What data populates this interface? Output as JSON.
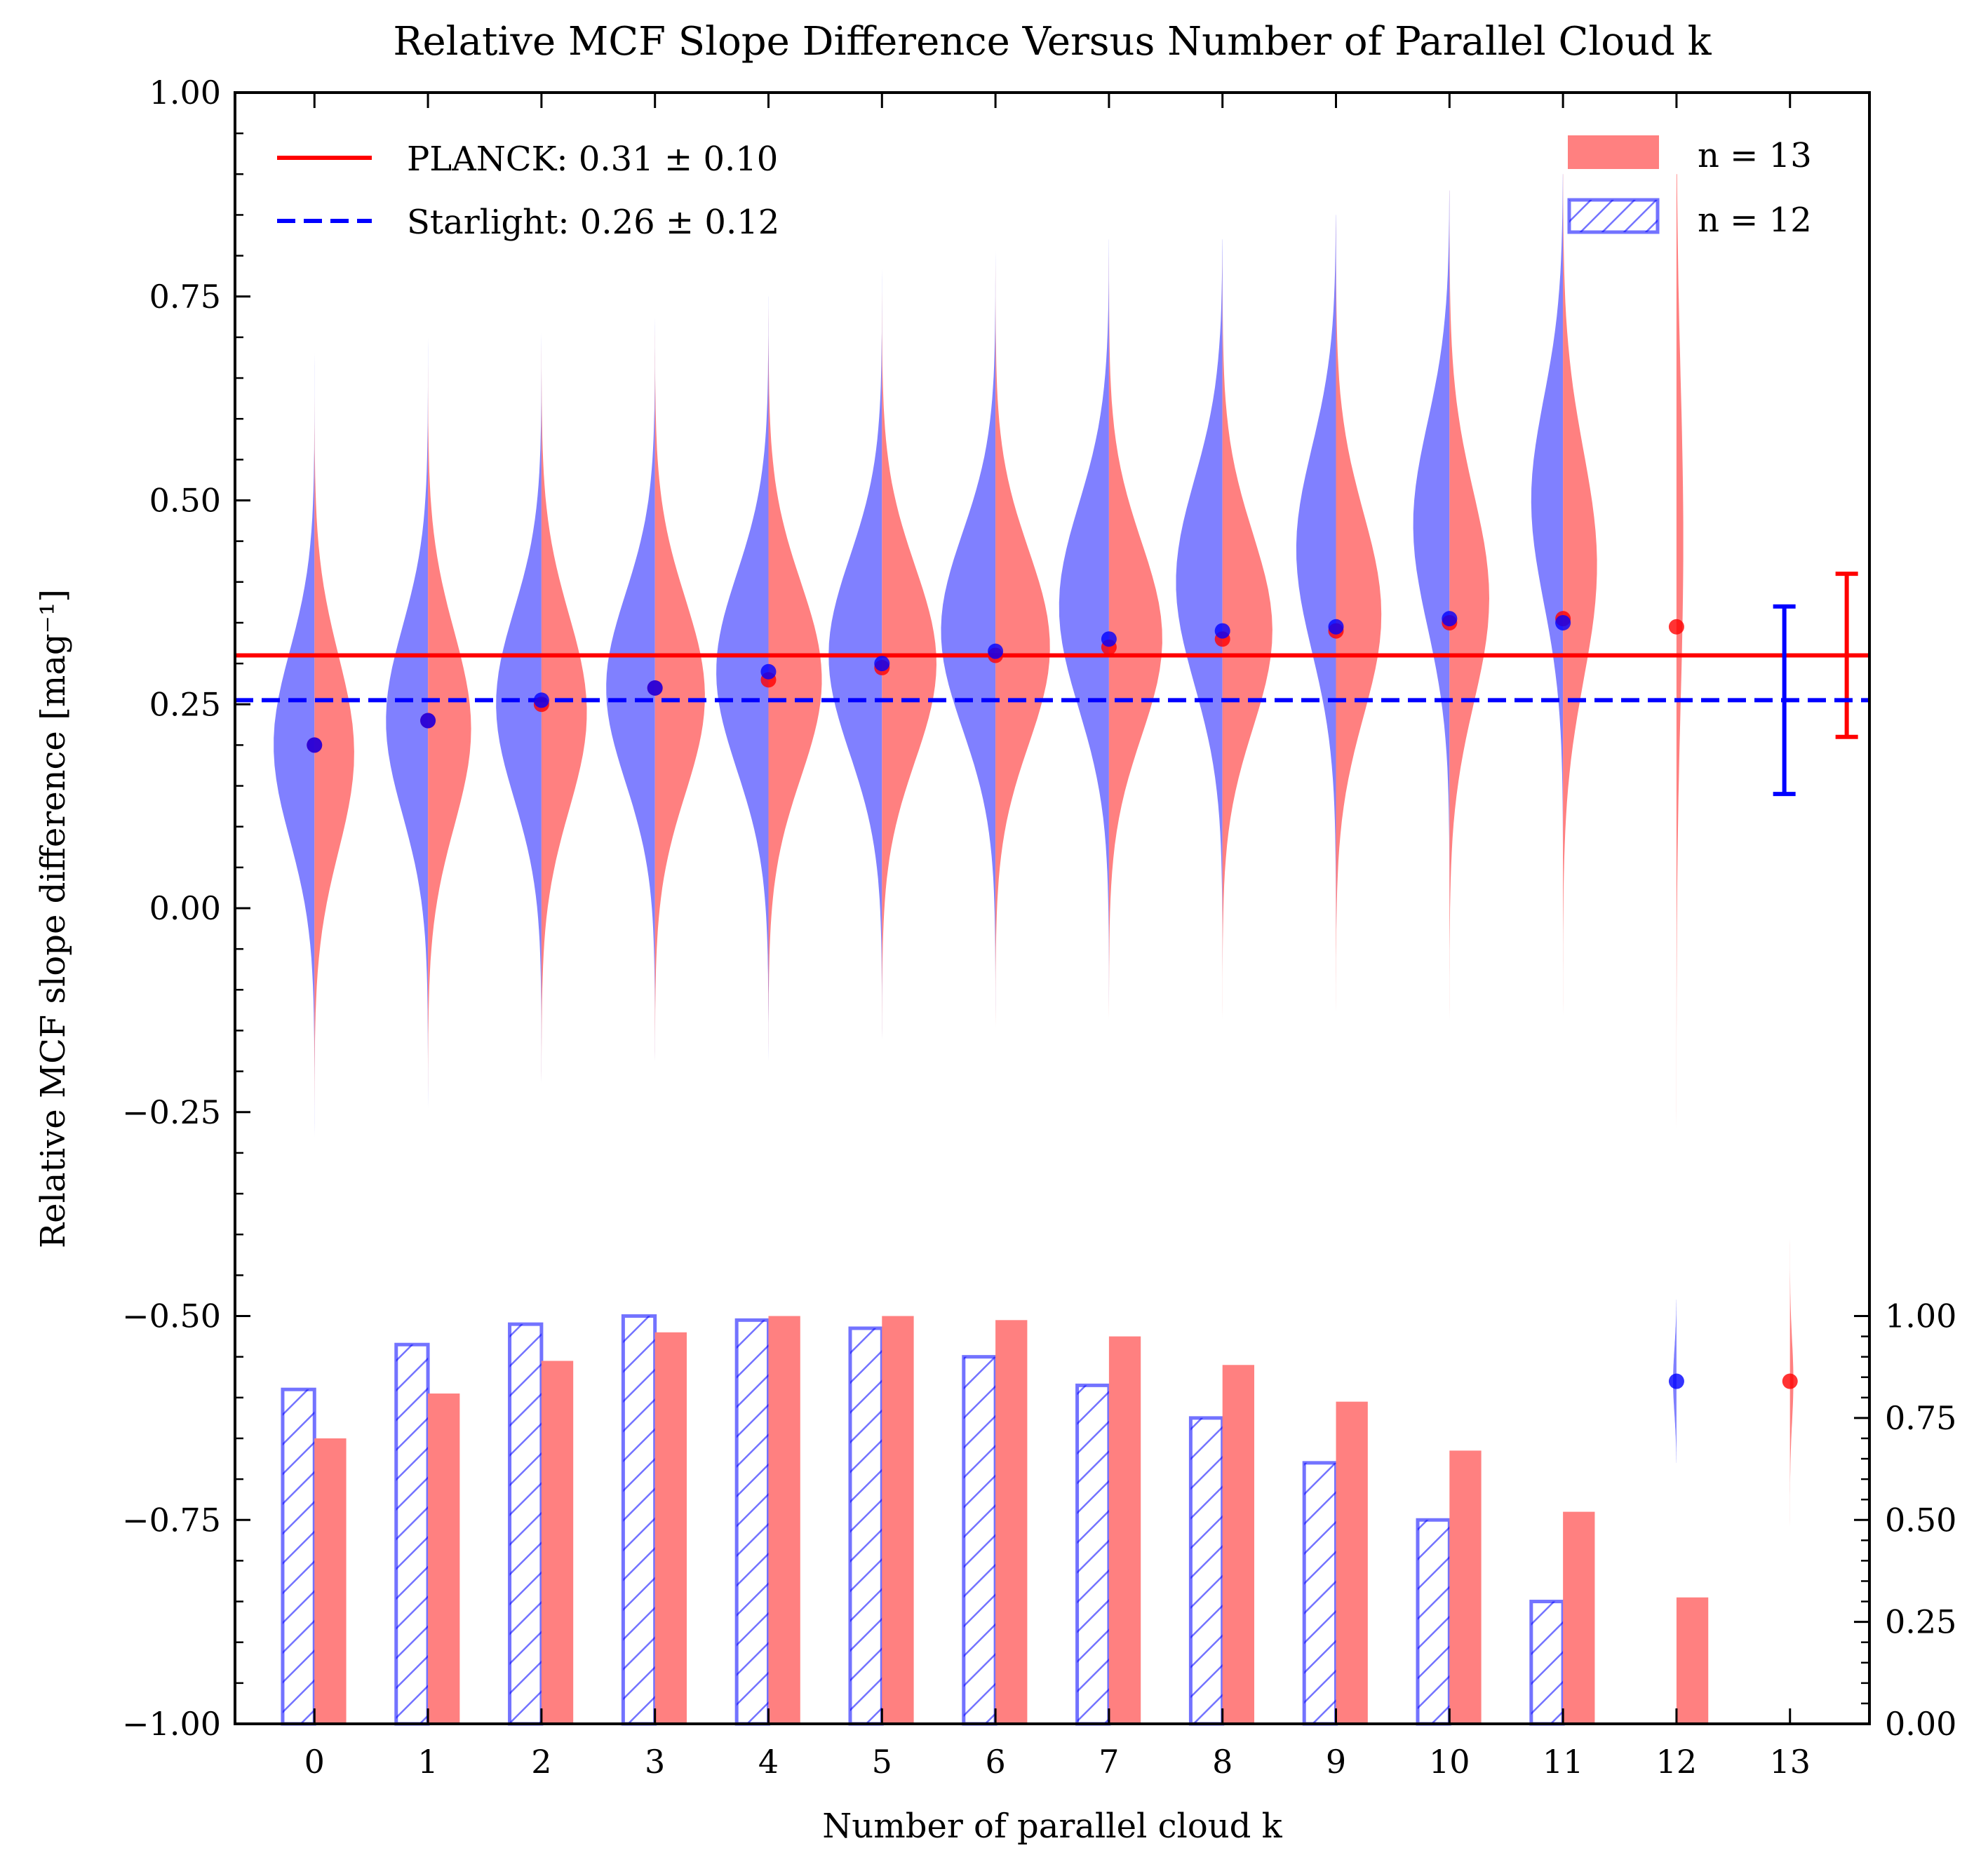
{
  "chart_data": {
    "type": "violin",
    "title": "Relative MCF Slope Difference Versus Number of Parallel Cloud k",
    "xlabel": "Number of parallel cloud k",
    "ylabel": "Relative MCF slope difference [mag⁻¹]",
    "x": [
      0,
      1,
      2,
      3,
      4,
      5,
      6,
      7,
      8,
      9,
      10,
      11,
      12,
      13
    ],
    "xlim": [
      -0.7,
      13.7
    ],
    "ylim": [
      -1.0,
      1.0
    ],
    "y_ticks": [
      "1.00",
      "0.75",
      "0.50",
      "0.25",
      "0.00",
      "−0.25",
      "−0.50",
      "−0.75",
      "−1.00"
    ],
    "y_right_ticks": [
      "1.00",
      "0.75",
      "0.50",
      "0.25",
      "0.00"
    ],
    "y_right_range": [
      0,
      1
    ],
    "reference_lines": [
      {
        "label": "PLANCK: 0.31 ± 0.10",
        "value": 0.31,
        "error": 0.1,
        "color": "#ff0000",
        "style": "solid",
        "errorbar_x": 13.5
      },
      {
        "label": "Starlight: 0.26 ± 0.12",
        "value": 0.255,
        "error": 0.115,
        "color": "#0000ff",
        "style": "dashed",
        "errorbar_x": 12.95
      }
    ],
    "legend_hist": [
      {
        "label": "n = 13",
        "color": "#ff8080",
        "hatch": false
      },
      {
        "label": "n = 12",
        "color": "#0000ff",
        "hatch": true
      }
    ],
    "series": [
      {
        "name": "n = 12",
        "side": "left",
        "color": "#8080ff",
        "marker_color": "#0000ff",
        "medians": [
          0.2,
          0.23,
          0.255,
          0.27,
          0.29,
          0.3,
          0.315,
          0.33,
          0.34,
          0.345,
          0.355,
          0.35,
          -0.58,
          null
        ],
        "violin_centers": [
          0.2,
          0.23,
          0.25,
          0.27,
          0.29,
          0.31,
          0.34,
          0.37,
          0.4,
          0.44,
          0.47,
          0.5,
          -0.58,
          null
        ],
        "violin_spread": [
          0.115,
          0.115,
          0.115,
          0.115,
          0.12,
          0.12,
          0.12,
          0.125,
          0.125,
          0.125,
          0.125,
          0.125,
          0.04,
          null
        ],
        "violin_width": [
          0.36,
          0.37,
          0.4,
          0.43,
          0.46,
          0.47,
          0.48,
          0.44,
          0.41,
          0.35,
          0.32,
          0.28,
          0.03,
          null
        ],
        "violin_range": [
          [
            -0.5,
            0.85
          ],
          [
            -0.35,
            0.85
          ],
          [
            -0.3,
            0.85
          ],
          [
            -0.25,
            0.75
          ],
          [
            -0.2,
            0.75
          ],
          [
            -0.2,
            0.85
          ],
          [
            -0.3,
            0.82
          ],
          [
            -0.5,
            0.82
          ],
          [
            -0.5,
            0.82
          ],
          [
            -0.5,
            0.85
          ],
          [
            -0.5,
            0.88
          ],
          [
            -0.5,
            0.9
          ],
          [
            -0.68,
            -0.48
          ],
          null
        ],
        "hist_fraction": [
          0.82,
          0.93,
          0.98,
          1.0,
          0.99,
          0.97,
          0.9,
          0.83,
          0.75,
          0.64,
          0.5,
          0.3,
          0.0,
          null
        ]
      },
      {
        "name": "n = 13",
        "side": "right",
        "color": "#ff8080",
        "marker_color": "#ff0000",
        "medians": [
          0.2,
          0.23,
          0.25,
          0.27,
          0.28,
          0.295,
          0.31,
          0.32,
          0.33,
          0.34,
          0.35,
          0.355,
          0.345,
          -0.58
        ],
        "violin_centers": [
          0.19,
          0.22,
          0.24,
          0.26,
          0.28,
          0.3,
          0.32,
          0.33,
          0.34,
          0.36,
          0.38,
          0.42,
          0.45,
          -0.58
        ],
        "violin_spread": [
          0.12,
          0.12,
          0.12,
          0.12,
          0.12,
          0.12,
          0.12,
          0.12,
          0.12,
          0.125,
          0.13,
          0.14,
          0.2,
          0.05
        ],
        "violin_width": [
          0.35,
          0.38,
          0.4,
          0.44,
          0.47,
          0.48,
          0.48,
          0.47,
          0.44,
          0.4,
          0.35,
          0.3,
          0.06,
          0.03
        ],
        "violin_range": [
          [
            -0.5,
            0.85
          ],
          [
            -0.35,
            0.85
          ],
          [
            -0.3,
            0.85
          ],
          [
            -0.25,
            0.75
          ],
          [
            -0.2,
            0.75
          ],
          [
            -0.2,
            0.85
          ],
          [
            -0.3,
            0.82
          ],
          [
            -0.5,
            0.82
          ],
          [
            -0.5,
            0.82
          ],
          [
            -0.5,
            0.85
          ],
          [
            -0.5,
            0.88
          ],
          [
            -0.5,
            0.9
          ],
          [
            -0.9,
            0.9
          ],
          [
            -0.9,
            -0.3
          ]
        ],
        "hist_fraction": [
          0.7,
          0.81,
          0.89,
          0.96,
          1.0,
          1.0,
          0.99,
          0.95,
          0.88,
          0.79,
          0.67,
          0.52,
          0.31,
          null
        ]
      }
    ]
  }
}
